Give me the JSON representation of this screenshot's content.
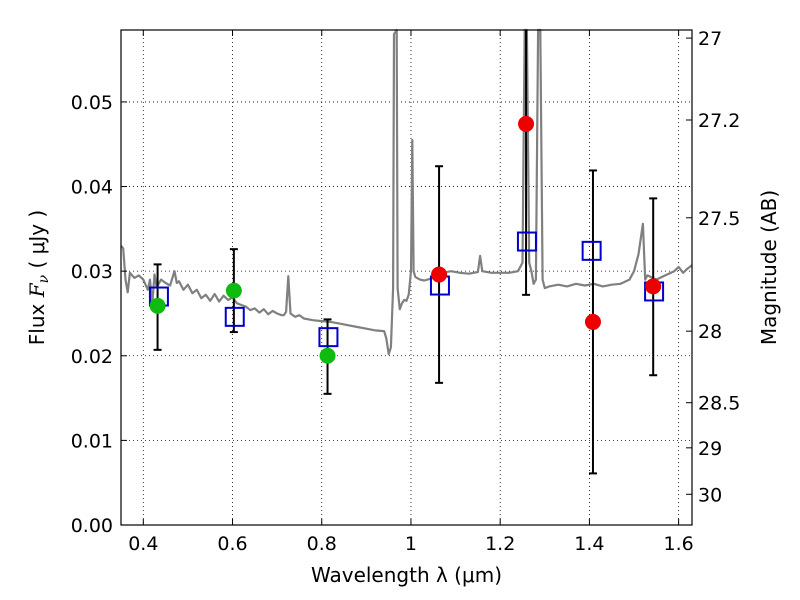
{
  "chart_data": {
    "type": "scatter",
    "xlabel": "Wavelength  λ (μm)",
    "ylabel_left": {
      "prefix": "Flux ",
      "symbol": "F",
      "subscript": "ν",
      "suffix": " ( μJy )"
    },
    "ylabel_right": "Magnitude (AB)",
    "xlim": [
      0.35,
      1.63
    ],
    "ylim": [
      0.0,
      0.0585
    ],
    "grid": true,
    "grid_style": "dotted",
    "x_ticks": [
      {
        "value": 0.4,
        "label": "0.4"
      },
      {
        "value": 0.6,
        "label": "0.6"
      },
      {
        "value": 0.8,
        "label": "0.8"
      },
      {
        "value": 1.0,
        "label": "1"
      },
      {
        "value": 1.2,
        "label": "1.2"
      },
      {
        "value": 1.4,
        "label": "1.4"
      },
      {
        "value": 1.6,
        "label": "1.6"
      }
    ],
    "y_ticks": [
      {
        "value": 0.0,
        "label": "0.00"
      },
      {
        "value": 0.01,
        "label": "0.01"
      },
      {
        "value": 0.02,
        "label": "0.02"
      },
      {
        "value": 0.03,
        "label": "0.03"
      },
      {
        "value": 0.04,
        "label": "0.04"
      },
      {
        "value": 0.05,
        "label": "0.05"
      }
    ],
    "right_ticks": [
      {
        "mag": 27,
        "label": "27"
      },
      {
        "mag": 27.2,
        "label": "27.2"
      },
      {
        "mag": 27.5,
        "label": "27.5"
      },
      {
        "mag": 28,
        "label": "28"
      },
      {
        "mag": 28.5,
        "label": "28.5"
      },
      {
        "mag": 29,
        "label": "29"
      },
      {
        "mag": 30,
        "label": "30"
      }
    ],
    "series": [
      {
        "kind": "sed_model",
        "color": "#808080",
        "points": [
          [
            0.35,
            0.033
          ],
          [
            0.355,
            0.0327
          ],
          [
            0.36,
            0.029
          ],
          [
            0.365,
            0.0275
          ],
          [
            0.37,
            0.0298
          ],
          [
            0.38,
            0.0292
          ],
          [
            0.39,
            0.0295
          ],
          [
            0.4,
            0.029
          ],
          [
            0.41,
            0.0278
          ],
          [
            0.415,
            0.029
          ],
          [
            0.42,
            0.026
          ],
          [
            0.425,
            0.0296
          ],
          [
            0.43,
            0.0281
          ],
          [
            0.44,
            0.029
          ],
          [
            0.45,
            0.0286
          ],
          [
            0.46,
            0.0283
          ],
          [
            0.47,
            0.03
          ],
          [
            0.475,
            0.0286
          ],
          [
            0.48,
            0.0288
          ],
          [
            0.49,
            0.0278
          ],
          [
            0.5,
            0.0284
          ],
          [
            0.51,
            0.0274
          ],
          [
            0.52,
            0.0278
          ],
          [
            0.53,
            0.0268
          ],
          [
            0.54,
            0.0272
          ],
          [
            0.55,
            0.0265
          ],
          [
            0.56,
            0.0273
          ],
          [
            0.57,
            0.0264
          ],
          [
            0.58,
            0.0271
          ],
          [
            0.59,
            0.0266
          ],
          [
            0.6,
            0.0269
          ],
          [
            0.61,
            0.0262
          ],
          [
            0.62,
            0.026
          ],
          [
            0.63,
            0.0258
          ],
          [
            0.64,
            0.0254
          ],
          [
            0.65,
            0.0256
          ],
          [
            0.66,
            0.0251
          ],
          [
            0.67,
            0.0255
          ],
          [
            0.68,
            0.0249
          ],
          [
            0.69,
            0.0253
          ],
          [
            0.7,
            0.025
          ],
          [
            0.71,
            0.0248
          ],
          [
            0.715,
            0.0248
          ],
          [
            0.72,
            0.0252
          ],
          [
            0.725,
            0.0294
          ],
          [
            0.73,
            0.025
          ],
          [
            0.74,
            0.0246
          ],
          [
            0.75,
            0.0248
          ],
          [
            0.76,
            0.0244
          ],
          [
            0.78,
            0.0242
          ],
          [
            0.8,
            0.0241
          ],
          [
            0.82,
            0.024
          ],
          [
            0.84,
            0.0238
          ],
          [
            0.86,
            0.0236
          ],
          [
            0.88,
            0.0234
          ],
          [
            0.9,
            0.0232
          ],
          [
            0.92,
            0.023
          ],
          [
            0.94,
            0.0229
          ],
          [
            0.945,
            0.022
          ],
          [
            0.95,
            0.0202
          ],
          [
            0.955,
            0.021
          ],
          [
            0.96,
            0.028
          ],
          [
            0.962,
            0.058
          ],
          [
            0.968,
            0.0585
          ],
          [
            0.97,
            0.028
          ],
          [
            0.975,
            0.0255
          ],
          [
            0.98,
            0.0262
          ],
          [
            0.985,
            0.0266
          ],
          [
            0.99,
            0.0265
          ],
          [
            0.995,
            0.0272
          ],
          [
            1.0,
            0.03
          ],
          [
            1.003,
            0.0455
          ],
          [
            1.006,
            0.03
          ],
          [
            1.01,
            0.0293
          ],
          [
            1.02,
            0.029
          ],
          [
            1.03,
            0.0289
          ],
          [
            1.05,
            0.0292
          ],
          [
            1.07,
            0.0298
          ],
          [
            1.09,
            0.03
          ],
          [
            1.11,
            0.0298
          ],
          [
            1.13,
            0.0297
          ],
          [
            1.15,
            0.0299
          ],
          [
            1.155,
            0.0318
          ],
          [
            1.16,
            0.03
          ],
          [
            1.18,
            0.0298
          ],
          [
            1.2,
            0.0298
          ],
          [
            1.22,
            0.0298
          ],
          [
            1.24,
            0.03
          ],
          [
            1.25,
            0.031
          ],
          [
            1.255,
            0.0585
          ],
          [
            1.26,
            0.0585
          ],
          [
            1.265,
            0.031
          ],
          [
            1.27,
            0.03
          ],
          [
            1.275,
            0.0285
          ],
          [
            1.28,
            0.029
          ],
          [
            1.285,
            0.0585
          ],
          [
            1.29,
            0.0585
          ],
          [
            1.295,
            0.029
          ],
          [
            1.3,
            0.028
          ],
          [
            1.31,
            0.0282
          ],
          [
            1.33,
            0.0284
          ],
          [
            1.35,
            0.0282
          ],
          [
            1.37,
            0.0285
          ],
          [
            1.39,
            0.0283
          ],
          [
            1.41,
            0.0285
          ],
          [
            1.43,
            0.0282
          ],
          [
            1.45,
            0.0284
          ],
          [
            1.47,
            0.0285
          ],
          [
            1.49,
            0.029
          ],
          [
            1.5,
            0.03
          ],
          [
            1.51,
            0.032
          ],
          [
            1.52,
            0.0356
          ],
          [
            1.525,
            0.029
          ],
          [
            1.53,
            0.0295
          ],
          [
            1.55,
            0.029
          ],
          [
            1.57,
            0.0295
          ],
          [
            1.59,
            0.03
          ],
          [
            1.6,
            0.0305
          ],
          [
            1.61,
            0.0298
          ],
          [
            1.62,
            0.0303
          ],
          [
            1.63,
            0.0307
          ]
        ]
      },
      {
        "kind": "model_photometry",
        "marker": "square-open",
        "color": "#0000cc",
        "points": [
          {
            "x": 0.435,
            "y": 0.027
          },
          {
            "x": 0.605,
            "y": 0.0246
          },
          {
            "x": 0.815,
            "y": 0.0222
          },
          {
            "x": 1.065,
            "y": 0.0283
          },
          {
            "x": 1.26,
            "y": 0.0335
          },
          {
            "x": 1.405,
            "y": 0.0324
          },
          {
            "x": 1.545,
            "y": 0.0276
          }
        ]
      },
      {
        "kind": "observed_optical",
        "marker": "circle-filled",
        "color": "#10bb10",
        "points": [
          {
            "x": 0.432,
            "y": 0.0259,
            "err_low": 0.0207,
            "err_high": 0.0308
          },
          {
            "x": 0.603,
            "y": 0.0277,
            "err_low": 0.0228,
            "err_high": 0.0326
          },
          {
            "x": 0.813,
            "y": 0.02,
            "err_low": 0.0155,
            "err_high": 0.0243
          }
        ]
      },
      {
        "kind": "observed_nir",
        "marker": "circle-filled",
        "color": "#ee0000",
        "points": [
          {
            "x": 1.063,
            "y": 0.0296,
            "err_low": 0.0168,
            "err_high": 0.0424
          },
          {
            "x": 1.258,
            "y": 0.0474,
            "err_low": 0.0272,
            "err_high": 0.0585
          },
          {
            "x": 1.408,
            "y": 0.024,
            "err_low": 0.0061,
            "err_high": 0.0419
          },
          {
            "x": 1.543,
            "y": 0.0282,
            "err_low": 0.0177,
            "err_high": 0.0386
          }
        ]
      }
    ]
  }
}
